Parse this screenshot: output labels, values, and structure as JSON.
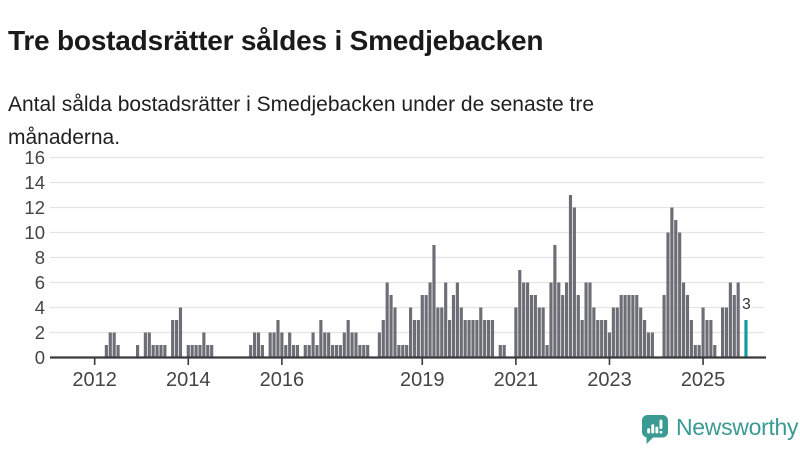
{
  "header": {
    "title": "Tre bostadsrätter såldes i Smedjebacken",
    "subtitle": "Antal sålda bostadsrätter i Smedjebacken under de senaste tre månaderna."
  },
  "chart_data": {
    "type": "bar",
    "title": "Tre bostadsrätter såldes i Smedjebacken",
    "subtitle": "Antal sålda bostadsrätter i Smedjebacken under de senaste tre månaderna.",
    "xlabel": "",
    "ylabel": "",
    "ylim": [
      0,
      16
    ],
    "ytick_step": 2,
    "ytick_labels": [
      "0",
      "2",
      "4",
      "6",
      "8",
      "10",
      "12",
      "14",
      "16"
    ],
    "grid": true,
    "legend": false,
    "start_month": "2011-04",
    "values": [
      0,
      0,
      0,
      0,
      0,
      0,
      0,
      0,
      0,
      0,
      0,
      0,
      1,
      2,
      2,
      1,
      0,
      0,
      0,
      0,
      1,
      0,
      2,
      2,
      1,
      1,
      1,
      1,
      0,
      3,
      3,
      4,
      0,
      1,
      1,
      1,
      1,
      2,
      1,
      1,
      0,
      0,
      0,
      0,
      0,
      0,
      0,
      0,
      0,
      1,
      2,
      2,
      1,
      0,
      2,
      2,
      3,
      2,
      1,
      2,
      1,
      1,
      0,
      1,
      1,
      2,
      1,
      3,
      2,
      2,
      1,
      1,
      1,
      2,
      3,
      2,
      2,
      1,
      1,
      1,
      0,
      0,
      2,
      3,
      6,
      5,
      4,
      1,
      1,
      1,
      4,
      3,
      3,
      5,
      5,
      6,
      9,
      4,
      4,
      6,
      3,
      5,
      6,
      4,
      3,
      3,
      3,
      3,
      4,
      3,
      3,
      3,
      0,
      1,
      1,
      0,
      0,
      4,
      7,
      6,
      6,
      5,
      5,
      4,
      4,
      1,
      6,
      9,
      6,
      5,
      6,
      13,
      12,
      5,
      3,
      6,
      6,
      4,
      3,
      3,
      3,
      2,
      4,
      4,
      5,
      5,
      5,
      5,
      5,
      4,
      3,
      2,
      2,
      0,
      0,
      5,
      10,
      12,
      11,
      10,
      6,
      5,
      3,
      1,
      1,
      4,
      3,
      3,
      1,
      0,
      4,
      4,
      6,
      5,
      6,
      0,
      3
    ],
    "xticks": [
      {
        "label": "2012",
        "index": 9
      },
      {
        "label": "2014",
        "index": 33
      },
      {
        "label": "2016",
        "index": 57
      },
      {
        "label": "2019",
        "index": 93
      },
      {
        "label": "2021",
        "index": 117
      },
      {
        "label": "2023",
        "index": 141
      },
      {
        "label": "2025",
        "index": 165
      }
    ],
    "highlight_last": {
      "value": 3,
      "label": "3"
    },
    "colors": {
      "bar": "#6d6d75",
      "highlight": "#0e9ba1",
      "grid": "#e4e4e6",
      "axis": "#3a3a3e",
      "axis_text": "#454545",
      "annotation_text": "#333333"
    }
  },
  "footer": {
    "logo_text": "Newsworthy",
    "logo_color": "#3b9a93",
    "logo_icon": "speech-bubble-bar-chart-exclamation"
  }
}
